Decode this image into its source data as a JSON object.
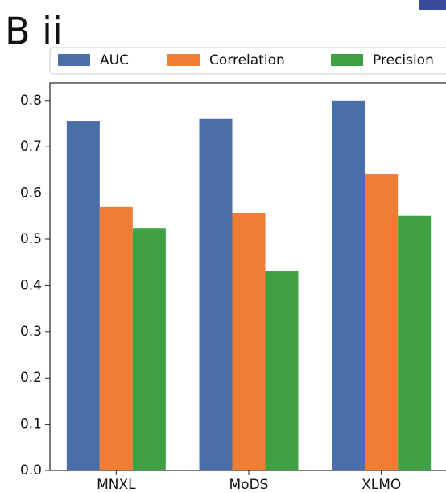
{
  "panel_label": "B ii",
  "chart_data": {
    "type": "bar",
    "categories": [
      "MNXL",
      "MoDS",
      "XLMO"
    ],
    "series": [
      {
        "name": "AUC",
        "color": "#4a6ea8",
        "values": [
          0.756,
          0.76,
          0.8
        ]
      },
      {
        "name": "Correlation",
        "color": "#ef7d35",
        "values": [
          0.57,
          0.556,
          0.641
        ]
      },
      {
        "name": "Precision",
        "color": "#3fa142",
        "values": [
          0.524,
          0.432,
          0.551
        ]
      }
    ],
    "ylim": [
      0,
      0.838
    ],
    "yticks": [
      {
        "value": 0,
        "label": "0.0"
      },
      0.1,
      0.2,
      0.3,
      0.4,
      0.5,
      0.6,
      0.7,
      0.8
    ],
    "legend": "above",
    "grid": false
  }
}
